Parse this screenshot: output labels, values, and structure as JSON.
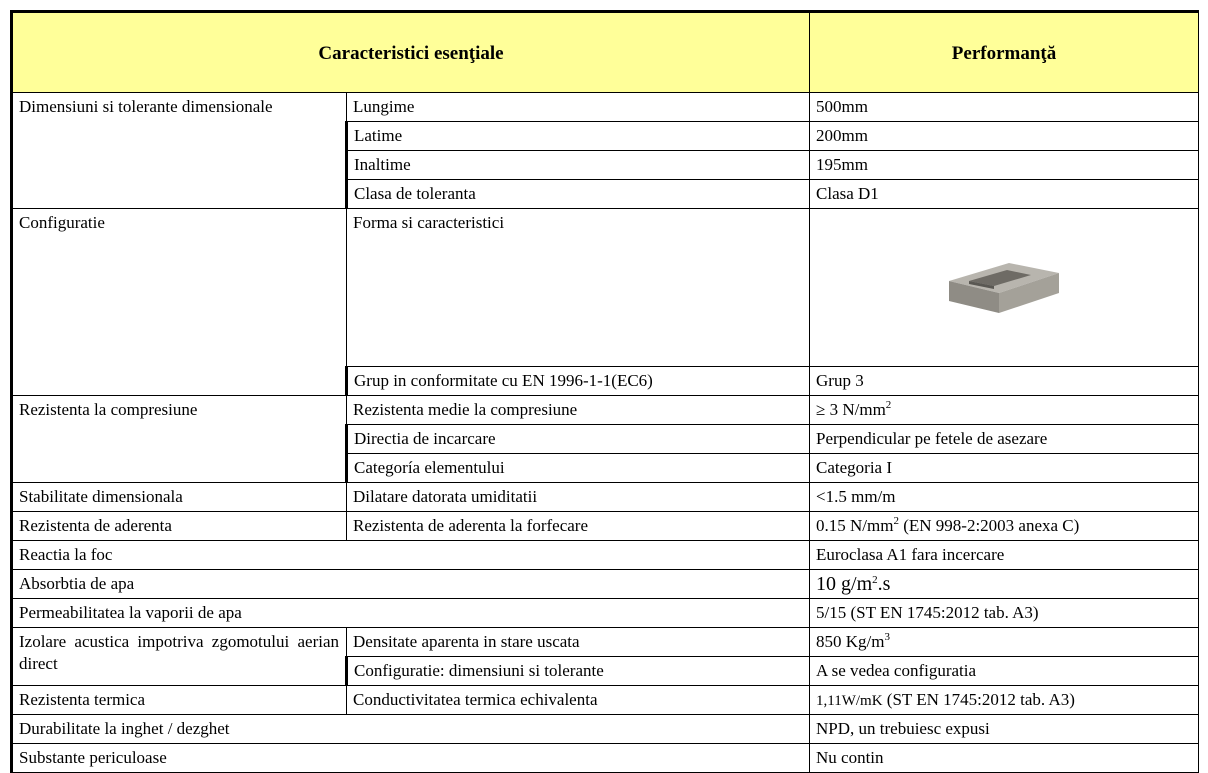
{
  "header": {
    "characteristics": "Caracteristici esenţiale",
    "performance": "Performanţă"
  },
  "groups": [
    {
      "label": "Dimensiuni si tolerante dimensionale",
      "items": [
        {
          "name": "Lungime",
          "value": [
            "500mm"
          ]
        },
        {
          "name": "Latime",
          "value": [
            "200mm"
          ]
        },
        {
          "name": "Inaltime",
          "value": [
            "195mm"
          ]
        },
        {
          "name": "Clasa de toleranta",
          "value": [
            "Clasa D1"
          ]
        }
      ]
    },
    {
      "label": "Configuratie",
      "items": [
        {
          "name": "Forma si caracteristici"
        },
        {
          "name": "Grup in conformitate cu EN 1996-1-1(EC6)",
          "value": [
            "Grup 3"
          ]
        }
      ]
    },
    {
      "label": "Rezistenta la compresiune",
      "items": [
        {
          "name": "Rezistenta medie la compresiune",
          "value": [
            "≥ 3 N/mm",
            "2"
          ]
        },
        {
          "name": "Directia de incarcare",
          "value": [
            "Perpendicular pe fetele de asezare"
          ]
        },
        {
          "name": "Categoría elementului",
          "value": [
            "Categoria I"
          ]
        }
      ]
    },
    {
      "label": "Stabilitate dimensionala",
      "items": [
        {
          "name": "Dilatare datorata umiditatii",
          "value": [
            "<1.5 mm/m"
          ]
        }
      ]
    },
    {
      "label": "Rezistenta de aderenta",
      "items": [
        {
          "name": "Rezistenta de aderenta la forfecare",
          "value": [
            "0.15 N/mm",
            "2",
            " (EN 998-2:2003 anexa C)"
          ]
        }
      ]
    },
    {
      "label": "Reactia la foc",
      "value": [
        "Euroclasa A1 fara incercare"
      ]
    },
    {
      "label": "Absorbtia de apa",
      "value": [
        "10 g/m",
        "2",
        ".s"
      ]
    },
    {
      "label": "Permeabilitatea la vaporii de apa",
      "value": [
        "5/15 (ST EN 1745:2012 tab. A3)"
      ]
    },
    {
      "label": "Izolare acustica impotriva zgomotului aerian direct",
      "items": [
        {
          "name": "Densitate aparenta in stare uscata",
          "value": [
            "850 Kg/m",
            "3"
          ]
        },
        {
          "name": "Configuratie: dimensiuni si tolerante",
          "value": [
            "A se vedea configuratia"
          ]
        }
      ]
    },
    {
      "label": "Rezistenta termica",
      "items": [
        {
          "name": "Conductivitatea termica echivalenta",
          "value": [
            "1,11W/mK",
            " (ST EN 1745:2012 tab. A3)"
          ]
        }
      ]
    },
    {
      "label": "Durabilitate la inghet / dezghet",
      "value": [
        "NPD, un trebuiesc expusi"
      ]
    },
    {
      "label": "Substante periculoase",
      "value": [
        "Nu contin"
      ]
    }
  ]
}
